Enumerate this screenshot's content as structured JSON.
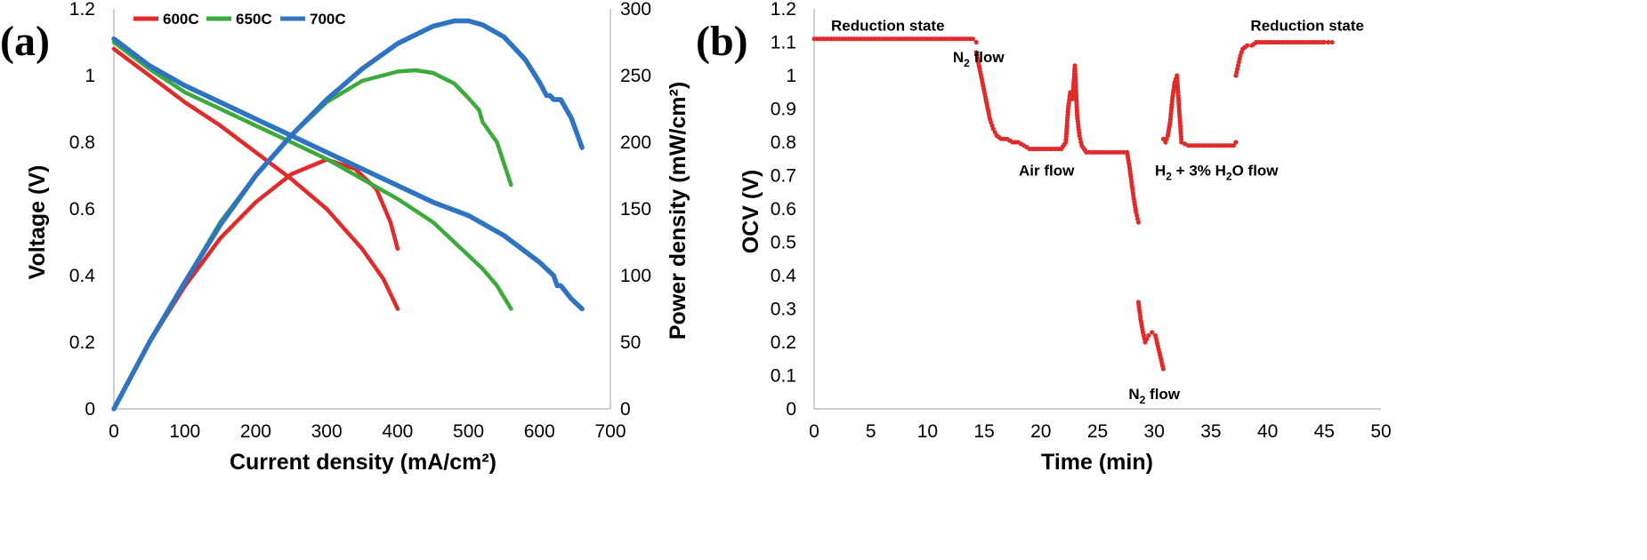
{
  "colors": {
    "600C": "#e12b2b",
    "650C": "#3daa3d",
    "700C": "#2e74c0",
    "ocv": "#e12b2b"
  },
  "chart_data": [
    {
      "panel_label": "(a)",
      "type": "line",
      "xlabel": "Current density (mA/cm²)",
      "ylabel": "Voltage (V)",
      "y2label": "Power density (mW/cm²)",
      "xlim": [
        0,
        700
      ],
      "ylim": [
        0,
        1.2
      ],
      "y2lim": [
        0,
        300
      ],
      "x_ticks": [
        "0",
        "100",
        "200",
        "300",
        "400",
        "500",
        "600",
        "700"
      ],
      "y_ticks": [
        "0",
        "0.2",
        "0.4",
        "0.6",
        "0.8",
        "1",
        "1.2"
      ],
      "y2_ticks": [
        "0",
        "50",
        "100",
        "150",
        "200",
        "250",
        "300"
      ],
      "legend": [
        "600C",
        "650C",
        "700C"
      ],
      "legend_position": "top-left",
      "series": [
        {
          "name": "600C",
          "axis": "left",
          "x": [
            0,
            50,
            100,
            150,
            200,
            250,
            300,
            350,
            380,
            400
          ],
          "y": [
            1.08,
            1.0,
            0.92,
            0.85,
            0.77,
            0.69,
            0.6,
            0.48,
            0.39,
            0.3
          ]
        },
        {
          "name": "600C",
          "axis": "right",
          "x": [
            0,
            50,
            100,
            150,
            200,
            250,
            300,
            340,
            370,
            390,
            400
          ],
          "y": [
            0,
            50,
            92,
            128,
            155,
            176,
            187,
            180,
            165,
            140,
            120
          ]
        },
        {
          "name": "650C",
          "axis": "left",
          "x": [
            0,
            50,
            100,
            150,
            200,
            250,
            300,
            350,
            400,
            450,
            500,
            515,
            520,
            540,
            560
          ],
          "y": [
            1.1,
            1.02,
            0.95,
            0.9,
            0.85,
            0.8,
            0.75,
            0.69,
            0.63,
            0.56,
            0.46,
            0.43,
            0.42,
            0.37,
            0.3
          ]
        },
        {
          "name": "650C",
          "axis": "right",
          "x": [
            0,
            50,
            100,
            150,
            200,
            250,
            300,
            350,
            400,
            425,
            450,
            480,
            500,
            515,
            520,
            540,
            560
          ],
          "y": [
            0,
            50,
            95,
            140,
            175,
            205,
            230,
            246,
            253,
            254,
            252,
            244,
            233,
            224,
            215,
            200,
            168
          ]
        },
        {
          "name": "700C",
          "axis": "left",
          "x": [
            0,
            50,
            100,
            150,
            200,
            250,
            300,
            350,
            400,
            450,
            500,
            550,
            600,
            620,
            625,
            630,
            645,
            660
          ],
          "y": [
            1.11,
            1.03,
            0.97,
            0.92,
            0.87,
            0.82,
            0.77,
            0.72,
            0.67,
            0.62,
            0.58,
            0.52,
            0.44,
            0.4,
            0.37,
            0.37,
            0.33,
            0.3
          ]
        },
        {
          "name": "700C",
          "axis": "right",
          "x": [
            0,
            50,
            100,
            150,
            200,
            250,
            300,
            350,
            400,
            450,
            480,
            500,
            520,
            550,
            580,
            600,
            610,
            615,
            620,
            630,
            645,
            660
          ],
          "y": [
            0,
            50,
            95,
            138,
            175,
            205,
            232,
            255,
            274,
            287,
            291,
            291,
            288,
            279,
            262,
            245,
            235,
            235,
            232,
            232,
            218,
            196
          ]
        }
      ]
    },
    {
      "panel_label": "(b)",
      "type": "scatter",
      "xlabel": "Time (min)",
      "ylabel": "OCV (V)",
      "xlim": [
        0,
        50
      ],
      "ylim": [
        0,
        1.2
      ],
      "x_ticks": [
        "0",
        "5",
        "10",
        "15",
        "20",
        "25",
        "30",
        "35",
        "40",
        "45",
        "50"
      ],
      "y_ticks": [
        "0",
        "0.1",
        "0.2",
        "0.3",
        "0.4",
        "0.5",
        "0.6",
        "0.7",
        "0.8",
        "0.9",
        "1",
        "1.1",
        "1.2"
      ],
      "series": [
        {
          "segments": [
            {
              "x": [
                0,
                2,
                4,
                6,
                8,
                10,
                12,
                13.5,
                14,
                14.3
              ],
              "y": [
                1.11,
                1.11,
                1.11,
                1.11,
                1.11,
                1.11,
                1.11,
                1.11,
                1.11,
                1.1
              ]
            },
            {
              "x": [
                14.3,
                14.6,
                14.9,
                15.2,
                15.5,
                15.8,
                16.1,
                16.5,
                17,
                17.5,
                18,
                18.5,
                19,
                20,
                21,
                21.8,
                22.2,
                22.4,
                22.6,
                22.8,
                23.0,
                23.2,
                23.4,
                23.6,
                24,
                25,
                26,
                27,
                27.6
              ],
              "y": [
                1.07,
                1.02,
                0.97,
                0.92,
                0.87,
                0.84,
                0.82,
                0.81,
                0.81,
                0.8,
                0.8,
                0.79,
                0.78,
                0.78,
                0.78,
                0.78,
                0.8,
                0.9,
                0.95,
                0.93,
                1.03,
                0.88,
                0.82,
                0.79,
                0.77,
                0.77,
                0.77,
                0.77,
                0.77
              ]
            },
            {
              "x": [
                27.6,
                27.8,
                28.0,
                28.2,
                28.4,
                28.6
              ],
              "y": [
                0.77,
                0.73,
                0.68,
                0.63,
                0.59,
                0.56
              ]
            },
            {
              "x": [
                28.6,
                28.8,
                29.0,
                29.2,
                29.5,
                29.8,
                30.1,
                30.8
              ],
              "y": [
                0.32,
                0.27,
                0.23,
                0.2,
                0.22,
                0.23,
                0.22,
                0.12
              ]
            },
            {
              "x": [
                30.8,
                31.0,
                31.2,
                31.4,
                31.6,
                31.8,
                32.0,
                32.2,
                32.4,
                33,
                34,
                35,
                36,
                37,
                37.2
              ],
              "y": [
                0.81,
                0.8,
                0.82,
                0.86,
                0.93,
                0.98,
                1.0,
                0.9,
                0.8,
                0.79,
                0.79,
                0.79,
                0.79,
                0.79,
                0.8
              ]
            },
            {
              "x": [
                37.2,
                37.4,
                37.6,
                37.8,
                38.2,
                38.6,
                39,
                40,
                41,
                42,
                43,
                44,
                45,
                45.7
              ],
              "y": [
                1.0,
                1.03,
                1.06,
                1.08,
                1.09,
                1.09,
                1.1,
                1.1,
                1.1,
                1.1,
                1.1,
                1.1,
                1.1,
                1.1
              ]
            }
          ]
        }
      ],
      "annotations": [
        {
          "text": "Reduction state",
          "x": 6.5,
          "y": 1.135
        },
        {
          "text": "N",
          "sub": "2",
          "rest": " flow",
          "x": 14.5,
          "y": 1.04
        },
        {
          "text": "Air flow",
          "x": 20.5,
          "y": 0.7
        },
        {
          "text": "H",
          "sub": "2",
          "rest": " + 3% H",
          "sub2": "2",
          "rest2": "O flow",
          "x": 35.5,
          "y": 0.7
        },
        {
          "text": "N",
          "sub": "2",
          "rest": " flow",
          "x": 30.0,
          "y": 0.03
        },
        {
          "text": "Reduction state",
          "x": 43.5,
          "y": 1.135
        }
      ]
    }
  ]
}
